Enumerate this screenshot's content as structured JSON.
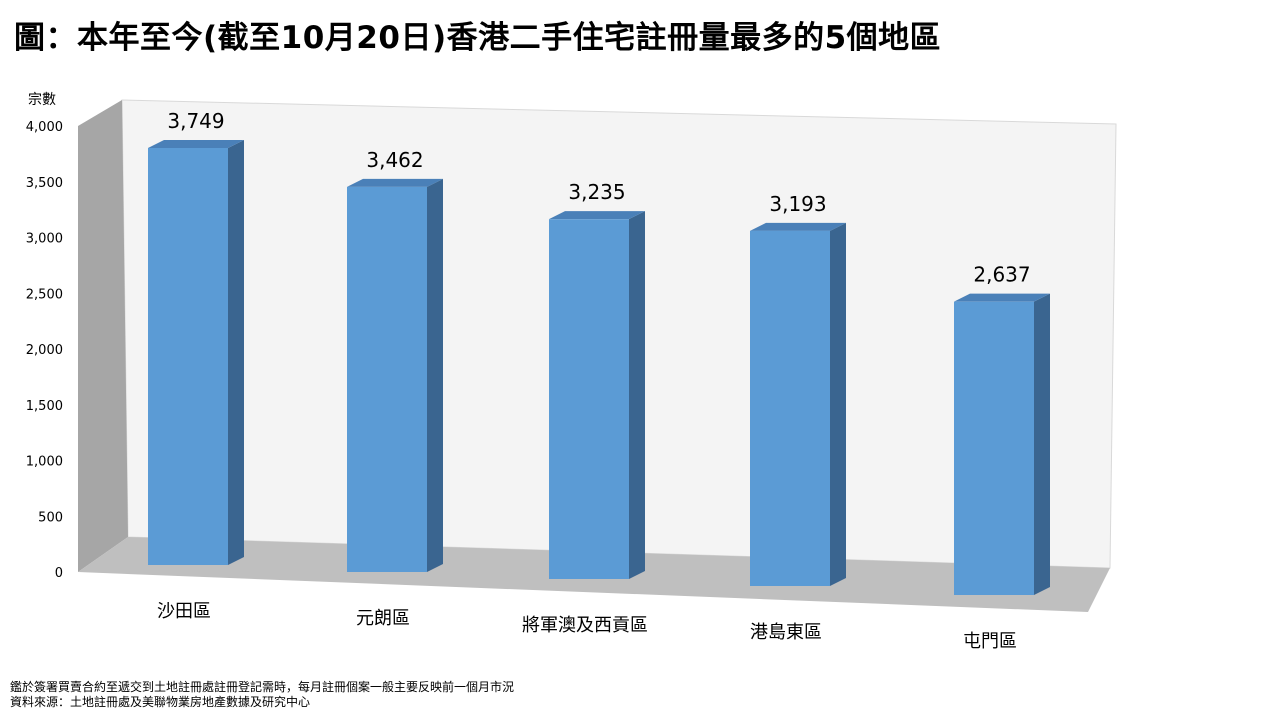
{
  "title": "圖：本年至今(截至10月20日)香港二手住宅註冊量最多的5個地區",
  "footnotes": [
    "鑑於簽署買賣合約至遞交到土地註冊處註冊登記需時，每月註冊個案一般主要反映前一個月市況",
    "資料來源：土地註冊處及美聯物業房地產數據及研究中心"
  ],
  "colors": {
    "bar_front": "#5b9bd5",
    "bar_side": "#3a6590",
    "bar_top": "#4a80b8",
    "back_wall": "#f4f4f4",
    "side_wall": "#a6a6a6",
    "floor": "#bfbfbf"
  },
  "chart_data": {
    "type": "bar",
    "title": "圖：本年至今(截至10月20日)香港二手住宅註冊量最多的5個地區",
    "xlabel": "",
    "ylabel": "宗數",
    "categories": [
      "沙田區",
      "元朗區",
      "將軍澳及西貢區",
      "港島東區",
      "屯門區"
    ],
    "values": [
      3749,
      3462,
      3235,
      3193,
      2637
    ],
    "value_labels": [
      "3,749",
      "3,462",
      "3,235",
      "3,193",
      "2,637"
    ],
    "yticks": [
      "0",
      "500",
      "1,000",
      "1,500",
      "2,000",
      "2,500",
      "3,000",
      "3,500",
      "4,000"
    ],
    "ylim": [
      0,
      4000
    ],
    "three_d": true,
    "grid": false,
    "legend": "none"
  }
}
